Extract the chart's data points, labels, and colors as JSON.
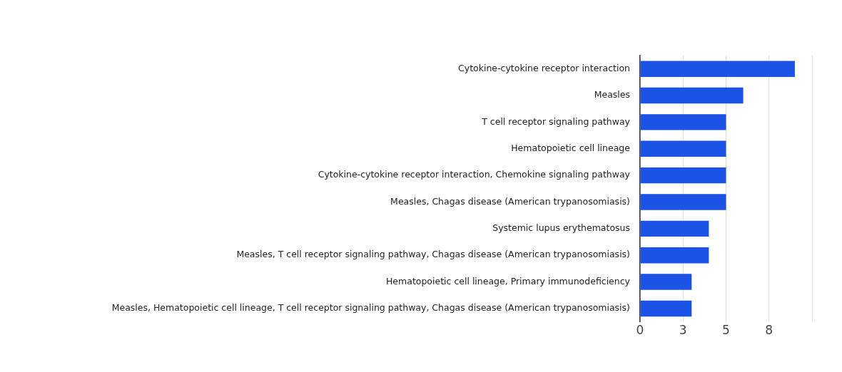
{
  "chart_data": {
    "type": "bar",
    "orientation": "horizontal",
    "categories": [
      "Cytokine-cytokine receptor interaction",
      "Measles",
      "T cell receptor signaling pathway",
      "Hematopoietic cell lineage",
      "Cytokine-cytokine receptor interaction, Chemokine signaling pathway",
      "Measles, Chagas disease (American trypanosomiasis)",
      "Systemic lupus erythematosus",
      "Measles, T cell receptor signaling pathway, Chagas disease (American trypanosomiasis)",
      "Hematopoietic cell lineage, Primary immunodeficiency",
      "Measles, Hematopoietic cell lineage, T cell receptor signaling pathway, Chagas disease (American trypanosomiasis)"
    ],
    "values": [
      9,
      6,
      5,
      5,
      5,
      5,
      4,
      4,
      3,
      3
    ],
    "color": "#1a53e6",
    "xlim": [
      0,
      10
    ],
    "xticks": [
      0,
      {
        "value": 2.5,
        "label": "3"
      },
      5,
      {
        "value": 7.5,
        "label": "8"
      },
      {
        "value": 10,
        "label": null
      }
    ],
    "grid": "x",
    "legend": false
  }
}
